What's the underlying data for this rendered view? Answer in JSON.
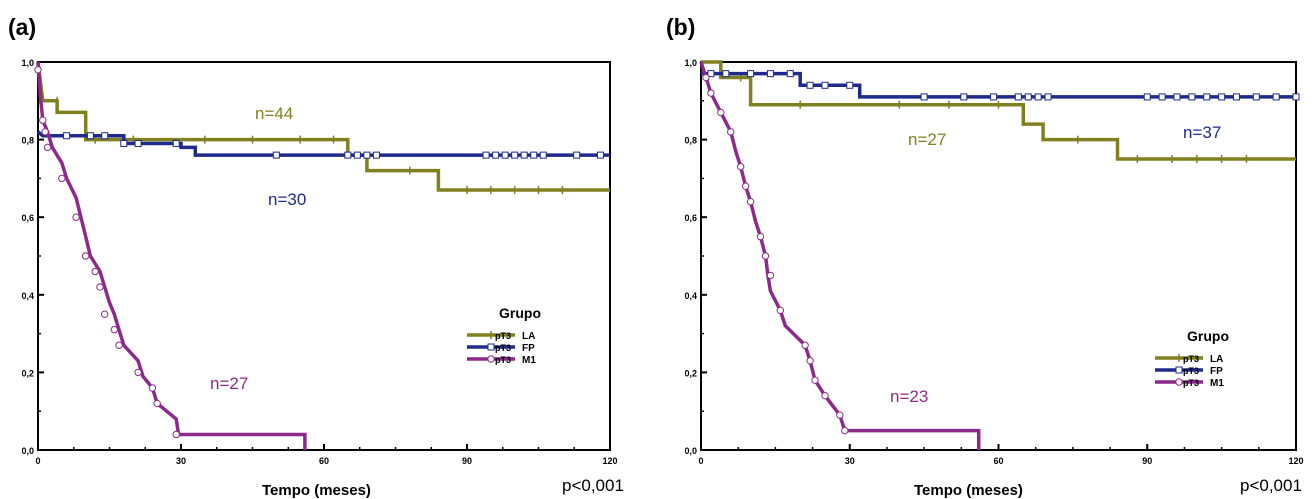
{
  "colors": {
    "LA": "#808020",
    "FP": "#1e2a8c",
    "M1": "#8c2a8c",
    "axis": "#000000"
  },
  "chart_data": [
    {
      "type": "line",
      "panel_label": "(a)",
      "xlabel": "Tempo (meses)",
      "ylabel": "",
      "xlim": [
        0,
        120
      ],
      "ylim": [
        0,
        1.0
      ],
      "x_ticks": [
        "0",
        "30",
        "60",
        "90",
        "120"
      ],
      "y_ticks": [
        "0,0",
        "0,2",
        "0,4",
        "0,6",
        "0,8",
        "1,0"
      ],
      "p_value": "p<0,001",
      "legend": {
        "title": "Grupo",
        "position": "right",
        "entries": [
          {
            "prefix": "pT3",
            "name": "LA"
          },
          {
            "prefix": "pT3",
            "name": "FP"
          },
          {
            "prefix": "pT3",
            "name": "M1"
          }
        ]
      },
      "series": [
        {
          "name": "LA",
          "n_label": "n=44",
          "marker": "tick",
          "steps": [
            [
              0,
              1.0
            ],
            [
              1,
              0.9
            ],
            [
              4,
              0.9
            ],
            [
              4,
              0.87
            ],
            [
              10,
              0.87
            ],
            [
              10,
              0.8
            ],
            [
              65,
              0.8
            ],
            [
              65,
              0.76
            ],
            [
              69,
              0.76
            ],
            [
              69,
              0.72
            ],
            [
              84,
              0.72
            ],
            [
              84,
              0.67
            ],
            [
              120,
              0.67
            ]
          ],
          "censored": [
            [
              4,
              0.9
            ],
            [
              12,
              0.8
            ],
            [
              20,
              0.8
            ],
            [
              35,
              0.8
            ],
            [
              45,
              0.8
            ],
            [
              55,
              0.8
            ],
            [
              62,
              0.8
            ],
            [
              78,
              0.72
            ],
            [
              90,
              0.67
            ],
            [
              95,
              0.67
            ],
            [
              100,
              0.67
            ],
            [
              105,
              0.67
            ],
            [
              110,
              0.67
            ]
          ]
        },
        {
          "name": "FP",
          "n_label": "n=30",
          "marker": "square",
          "steps": [
            [
              0,
              0.82
            ],
            [
              1,
              0.81
            ],
            [
              18,
              0.81
            ],
            [
              18,
              0.79
            ],
            [
              30,
              0.79
            ],
            [
              30,
              0.78
            ],
            [
              33,
              0.78
            ],
            [
              33,
              0.76
            ],
            [
              120,
              0.76
            ]
          ],
          "censored": [
            [
              6,
              0.81
            ],
            [
              11,
              0.81
            ],
            [
              14,
              0.81
            ],
            [
              18,
              0.79
            ],
            [
              21,
              0.79
            ],
            [
              29,
              0.79
            ],
            [
              50,
              0.76
            ],
            [
              65,
              0.76
            ],
            [
              67,
              0.76
            ],
            [
              69,
              0.76
            ],
            [
              71,
              0.76
            ],
            [
              94,
              0.76
            ],
            [
              96,
              0.76
            ],
            [
              98,
              0.76
            ],
            [
              100,
              0.76
            ],
            [
              102,
              0.76
            ],
            [
              104,
              0.76
            ],
            [
              106,
              0.76
            ],
            [
              113,
              0.76
            ],
            [
              118,
              0.76
            ]
          ]
        },
        {
          "name": "M1",
          "n_label": "n=27",
          "marker": "circle",
          "steps": [
            [
              0,
              1.0
            ],
            [
              0.5,
              0.91
            ],
            [
              1,
              0.85
            ],
            [
              2,
              0.82
            ],
            [
              3,
              0.78
            ],
            [
              5,
              0.74
            ],
            [
              6,
              0.7
            ],
            [
              8,
              0.65
            ],
            [
              9,
              0.6
            ],
            [
              10,
              0.55
            ],
            [
              11,
              0.5
            ],
            [
              13,
              0.46
            ],
            [
              14,
              0.42
            ],
            [
              15,
              0.38
            ],
            [
              16,
              0.35
            ],
            [
              17,
              0.31
            ],
            [
              18,
              0.27
            ],
            [
              21,
              0.23
            ],
            [
              22,
              0.19
            ],
            [
              24,
              0.16
            ],
            [
              25,
              0.12
            ],
            [
              29,
              0.08
            ],
            [
              29.5,
              0.04
            ],
            [
              56,
              0.04
            ],
            [
              56,
              0.0
            ]
          ],
          "censored": [
            [
              0,
              0.98
            ],
            [
              1,
              0.85
            ],
            [
              1.5,
              0.82
            ],
            [
              2,
              0.78
            ],
            [
              5,
              0.7
            ],
            [
              8,
              0.6
            ],
            [
              10,
              0.5
            ],
            [
              12,
              0.46
            ],
            [
              13,
              0.42
            ],
            [
              14,
              0.35
            ],
            [
              16,
              0.31
            ],
            [
              17,
              0.27
            ],
            [
              21,
              0.2
            ],
            [
              24,
              0.16
            ],
            [
              25,
              0.12
            ],
            [
              29,
              0.04
            ]
          ]
        }
      ]
    },
    {
      "type": "line",
      "panel_label": "(b)",
      "xlabel": "Tempo (meses)",
      "ylabel": "",
      "xlim": [
        0,
        120
      ],
      "ylim": [
        0,
        1.0
      ],
      "x_ticks": [
        "0",
        "30",
        "60",
        "90",
        "120"
      ],
      "y_ticks": [
        "0,0",
        "0,2",
        "0,4",
        "0,6",
        "0,8",
        "1,0"
      ],
      "p_value": "p<0,001",
      "legend": {
        "title": "Grupo",
        "position": "right",
        "entries": [
          {
            "prefix": "pT3",
            "name": "LA"
          },
          {
            "prefix": "pT3",
            "name": "FP"
          },
          {
            "prefix": "pT3",
            "name": "M1"
          }
        ]
      },
      "series": [
        {
          "name": "LA",
          "n_label": "n=27",
          "marker": "tick",
          "steps": [
            [
              0,
              1.0
            ],
            [
              4,
              1.0
            ],
            [
              4,
              0.96
            ],
            [
              10,
              0.96
            ],
            [
              10,
              0.89
            ],
            [
              65,
              0.89
            ],
            [
              65,
              0.84
            ],
            [
              69,
              0.84
            ],
            [
              69,
              0.8
            ],
            [
              84,
              0.8
            ],
            [
              84,
              0.75
            ],
            [
              120,
              0.75
            ]
          ],
          "censored": [
            [
              8,
              0.96
            ],
            [
              20,
              0.89
            ],
            [
              40,
              0.89
            ],
            [
              50,
              0.89
            ],
            [
              60,
              0.89
            ],
            [
              76,
              0.8
            ],
            [
              88,
              0.75
            ],
            [
              95,
              0.75
            ],
            [
              100,
              0.75
            ],
            [
              105,
              0.75
            ],
            [
              110,
              0.75
            ]
          ]
        },
        {
          "name": "FP",
          "n_label": "n=37",
          "marker": "square",
          "steps": [
            [
              0,
              0.97
            ],
            [
              20,
              0.97
            ],
            [
              20,
              0.94
            ],
            [
              32,
              0.94
            ],
            [
              32,
              0.91
            ],
            [
              120,
              0.91
            ]
          ],
          "censored": [
            [
              2,
              0.97
            ],
            [
              5,
              0.97
            ],
            [
              10,
              0.97
            ],
            [
              14,
              0.97
            ],
            [
              18,
              0.97
            ],
            [
              22,
              0.94
            ],
            [
              25,
              0.94
            ],
            [
              30,
              0.94
            ],
            [
              45,
              0.91
            ],
            [
              53,
              0.91
            ],
            [
              59,
              0.91
            ],
            [
              64,
              0.91
            ],
            [
              66,
              0.91
            ],
            [
              68,
              0.91
            ],
            [
              70,
              0.91
            ],
            [
              90,
              0.91
            ],
            [
              93,
              0.91
            ],
            [
              96,
              0.91
            ],
            [
              99,
              0.91
            ],
            [
              102,
              0.91
            ],
            [
              105,
              0.91
            ],
            [
              108,
              0.91
            ],
            [
              112,
              0.91
            ],
            [
              116,
              0.91
            ],
            [
              120,
              0.91
            ]
          ]
        },
        {
          "name": "M1",
          "n_label": "n=23",
          "marker": "circle",
          "steps": [
            [
              0,
              1.0
            ],
            [
              1,
              0.96
            ],
            [
              2,
              0.92
            ],
            [
              4,
              0.87
            ],
            [
              6,
              0.82
            ],
            [
              7,
              0.77
            ],
            [
              8,
              0.73
            ],
            [
              9,
              0.68
            ],
            [
              10,
              0.64
            ],
            [
              11,
              0.59
            ],
            [
              12,
              0.55
            ],
            [
              13,
              0.5
            ],
            [
              13.5,
              0.45
            ],
            [
              14,
              0.41
            ],
            [
              16,
              0.36
            ],
            [
              17,
              0.32
            ],
            [
              21,
              0.27
            ],
            [
              22,
              0.23
            ],
            [
              23,
              0.18
            ],
            [
              25,
              0.14
            ],
            [
              28,
              0.09
            ],
            [
              29,
              0.05
            ],
            [
              56,
              0.05
            ],
            [
              56,
              0.0
            ]
          ],
          "censored": [
            [
              1,
              0.96
            ],
            [
              2,
              0.92
            ],
            [
              4,
              0.87
            ],
            [
              6,
              0.82
            ],
            [
              8,
              0.73
            ],
            [
              9,
              0.68
            ],
            [
              10,
              0.64
            ],
            [
              12,
              0.55
            ],
            [
              13,
              0.5
            ],
            [
              14,
              0.45
            ],
            [
              16,
              0.36
            ],
            [
              21,
              0.27
            ],
            [
              22,
              0.23
            ],
            [
              23,
              0.18
            ],
            [
              25,
              0.14
            ],
            [
              28,
              0.09
            ],
            [
              29,
              0.05
            ]
          ]
        }
      ]
    }
  ]
}
